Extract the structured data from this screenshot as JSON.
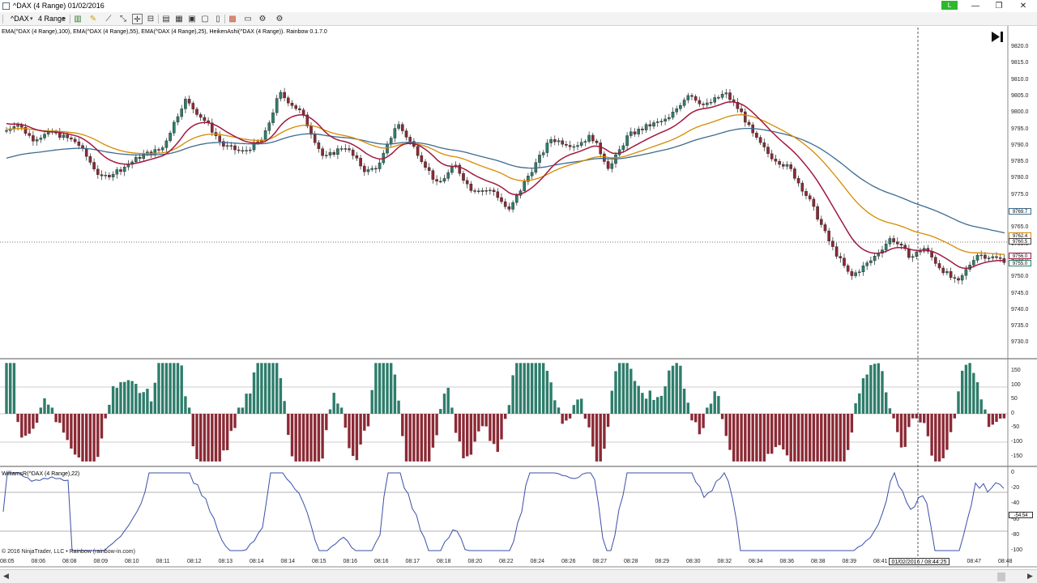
{
  "window": {
    "title": "^DAX (4 Range)  01/02/2016",
    "live_badge": "L",
    "minimize": "—",
    "restore": "❐",
    "close": "✕"
  },
  "toolbar": {
    "instrument": "^DAX",
    "interval": "4 Range"
  },
  "chart": {
    "price_panel_label": "EMA(^DAX (4 Range),100), EMA(^DAX (4 Range),55), EMA(^DAX (4 Range),25), HeikenAshi(^DAX (4 Range)). Rainbow 0.1.7.0",
    "williams_label": "WilliamsR(^DAX (4 Range),22)",
    "copyright": "© 2016 NinjaTrader, LLC • Rainbow (rainbow-in.com)",
    "cursor_date": "01/02/2016 / 08:44:25",
    "price_axis": [
      "9820.0",
      "9815.0",
      "9810.0",
      "9805.0",
      "9800.0",
      "9795.0",
      "9790.0",
      "9785.0",
      "9780.0",
      "9775.0",
      "9770.0",
      "9765.0",
      "9760.0",
      "9755.0",
      "9750.0",
      "9745.0",
      "9740.0",
      "9735.0",
      "9730.0"
    ],
    "histogram_axis": [
      "150",
      "100",
      "50",
      "0",
      "-50",
      "-100",
      "-150"
    ],
    "williams_axis": [
      "0",
      "-20",
      "-40",
      "-60",
      "-80",
      "-100"
    ],
    "time_axis": [
      "08:05",
      "08:06",
      "08:08",
      "08:09",
      "08:10",
      "08:11",
      "08:12",
      "08:13",
      "08:14",
      "08:14",
      "08:15",
      "08:16",
      "08:16",
      "08:17",
      "08:18",
      "08:20",
      "08:22",
      "08:24",
      "08:26",
      "08:27",
      "08:28",
      "08:29",
      "08:30",
      "08:32",
      "08:34",
      "08:36",
      "08:38",
      "08:39",
      "08:41",
      "08:44",
      "08:46",
      "08:47",
      "08:48"
    ],
    "price_badges": [
      "9769.7",
      "9762.4",
      "9760.5",
      "9756.0",
      "9755.0"
    ],
    "williams_badge": "-54.54"
  },
  "colors": {
    "bull": "#2e7d6b",
    "bear": "#8b2a35",
    "ema25": "#a0193f",
    "ema55": "#d68a00",
    "ema100": "#3b6b8f",
    "williams": "#3a4fa8"
  }
}
